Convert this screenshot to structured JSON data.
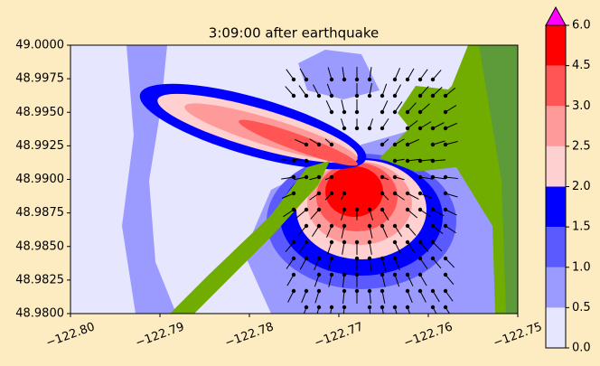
{
  "chart_data": {
    "type": "contour",
    "title": "3:09:00 after earthquake",
    "xlim": [
      -122.8,
      -122.75
    ],
    "xticks": [
      {
        "value": -122.8,
        "label": "−122.80"
      },
      {
        "value": -122.79,
        "label": "−122.79"
      },
      {
        "value": -122.78,
        "label": "−122.78"
      },
      {
        "value": -122.77,
        "label": "−122.77"
      },
      {
        "value": -122.76,
        "label": "−122.76"
      },
      {
        "value": -122.75,
        "label": "−122.75"
      }
    ],
    "ylim": [
      48.98,
      49.0
    ],
    "yticks": [
      {
        "value": 48.98,
        "label": "48.9800"
      },
      {
        "value": 48.9825,
        "label": "48.9825"
      },
      {
        "value": 48.985,
        "label": "48.9850"
      },
      {
        "value": 48.9875,
        "label": "48.9875"
      },
      {
        "value": 48.99,
        "label": "48.9900"
      },
      {
        "value": 48.9925,
        "label": "48.9925"
      },
      {
        "value": 48.995,
        "label": "48.9950"
      },
      {
        "value": 48.9975,
        "label": "48.9975"
      },
      {
        "value": 49.0,
        "label": "49.0000"
      }
    ],
    "levels": [
      {
        "value": 0,
        "label": "0.0"
      },
      {
        "value": 0.5,
        "label": "0.5"
      },
      {
        "value": 1,
        "label": "1.0"
      },
      {
        "value": 1.5,
        "label": "1.5"
      },
      {
        "value": 2,
        "label": "2.0"
      },
      {
        "value": 2.5,
        "label": "2.5"
      },
      {
        "value": 3,
        "label": "3.0"
      },
      {
        "value": 4.5,
        "label": "4.5"
      },
      {
        "value": 6,
        "label": "6.0"
      }
    ],
    "colors": [
      "#e6e6ff",
      "#9b9bff",
      "#5a5aff",
      "#0000ff",
      "#ffd0d0",
      "#ff9a9a",
      "#ff5555",
      "#ff0000"
    ],
    "extend_color": "#ff00ff"
  }
}
